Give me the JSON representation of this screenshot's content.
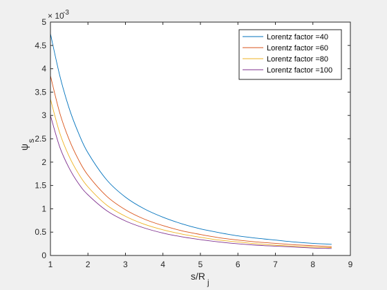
{
  "chart_data": {
    "type": "line",
    "xlabel_main": "s/R",
    "xlabel_sub": "j",
    "ylabel_main": "ψ",
    "ylabel_sub": "s",
    "y_exponent_base": "× 10",
    "y_exponent_power": "-3",
    "xlim": [
      1,
      9
    ],
    "ylim": [
      0,
      5
    ],
    "y_scale_factor": 0.001,
    "xticks": [
      "1",
      "2",
      "3",
      "4",
      "5",
      "6",
      "7",
      "8",
      "9"
    ],
    "yticks": [
      "0",
      "0.5",
      "1",
      "1.5",
      "2",
      "2.5",
      "3",
      "3.5",
      "4",
      "4.5",
      "5"
    ],
    "grid": false,
    "legend_position": "top-right",
    "x": [
      1.0,
      1.25,
      1.5,
      1.75,
      2.0,
      2.5,
      3.0,
      3.5,
      4.0,
      4.5,
      5.0,
      5.5,
      6.0,
      6.5,
      7.0,
      7.5,
      8.0,
      8.5
    ],
    "series": [
      {
        "name": "Lorentz factor =40",
        "color": "#0072bd",
        "values": [
          4.75,
          3.85,
          3.15,
          2.62,
          2.2,
          1.62,
          1.25,
          1.0,
          0.82,
          0.68,
          0.57,
          0.49,
          0.42,
          0.37,
          0.33,
          0.29,
          0.26,
          0.24
        ]
      },
      {
        "name": "Lorentz factor =60",
        "color": "#d95319",
        "values": [
          3.85,
          3.05,
          2.48,
          2.05,
          1.72,
          1.27,
          0.98,
          0.78,
          0.64,
          0.53,
          0.45,
          0.38,
          0.33,
          0.29,
          0.26,
          0.23,
          0.21,
          0.19
        ]
      },
      {
        "name": "Lorentz factor =80",
        "color": "#edb120",
        "values": [
          3.35,
          2.62,
          2.12,
          1.75,
          1.47,
          1.08,
          0.84,
          0.67,
          0.55,
          0.46,
          0.39,
          0.33,
          0.29,
          0.25,
          0.22,
          0.2,
          0.18,
          0.17
        ]
      },
      {
        "name": "Lorentz factor =100",
        "color": "#7e2f8e",
        "values": [
          3.0,
          2.32,
          1.87,
          1.54,
          1.3,
          0.96,
          0.74,
          0.59,
          0.48,
          0.4,
          0.34,
          0.29,
          0.25,
          0.22,
          0.2,
          0.18,
          0.16,
          0.15
        ]
      }
    ]
  }
}
